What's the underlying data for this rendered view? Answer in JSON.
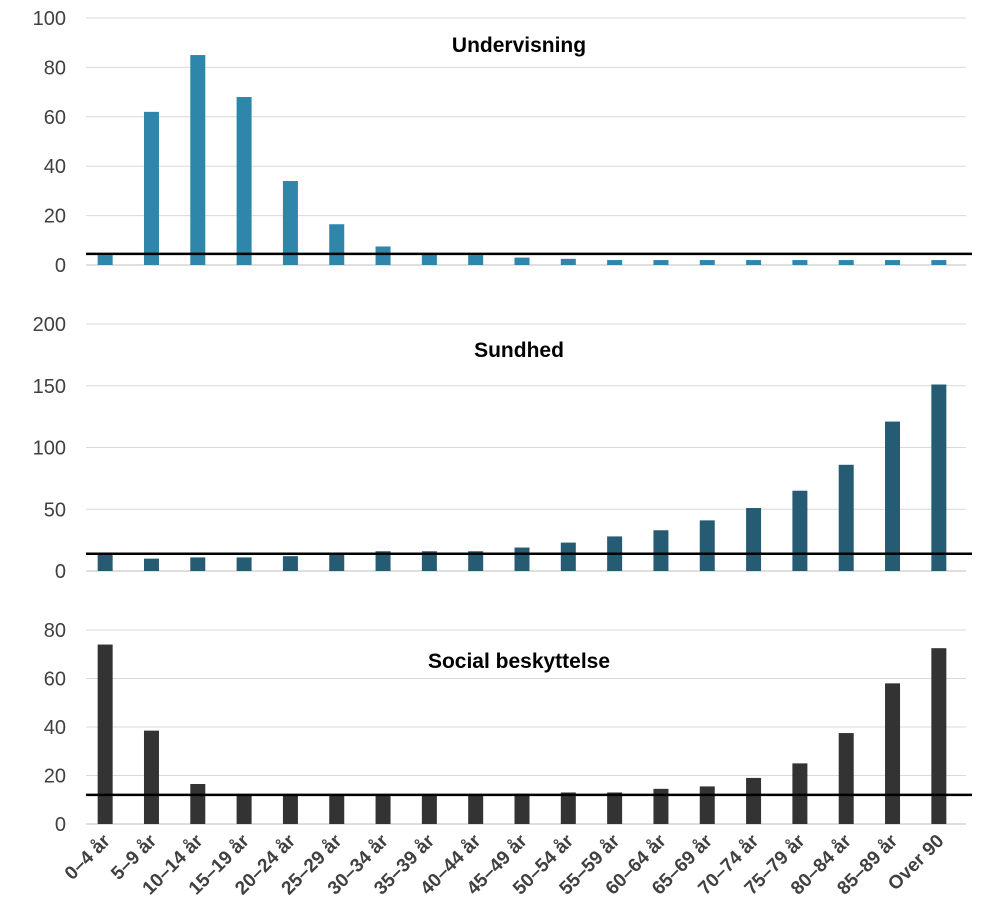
{
  "chart_data": [
    {
      "type": "bar",
      "title": "Undervisning",
      "color": "#2e86ab",
      "ylim": [
        0,
        100
      ],
      "yticks": [
        0,
        20,
        40,
        60,
        80,
        100
      ],
      "reference_line": 4.5,
      "categories": [
        "0–4 år",
        "5–9 år",
        "10–14 år",
        "15–19 år",
        "20–24 år",
        "25–29 år",
        "30–34 år",
        "35–39 år",
        "40–44 år",
        "45–49 år",
        "50–54 år",
        "55–59 år",
        "60–64 år",
        "65–69 år",
        "70–74 år",
        "75–79 år",
        "80–84 år",
        "85–89 år",
        "Over 90"
      ],
      "values": [
        4,
        62,
        85,
        68,
        34,
        16.5,
        7.5,
        4.5,
        4,
        3,
        2.5,
        2,
        2,
        2,
        2,
        2,
        2,
        2,
        2
      ]
    },
    {
      "type": "bar",
      "title": "Sundhed",
      "color": "#265c73",
      "ylim": [
        0,
        200
      ],
      "yticks": [
        0,
        50,
        100,
        150,
        200
      ],
      "reference_line": 14,
      "categories": [
        "0–4 år",
        "5–9 år",
        "10–14 år",
        "15–19 år",
        "20–24 år",
        "25–29 år",
        "30–34 år",
        "35–39 år",
        "40–44 år",
        "45–49 år",
        "50–54 år",
        "55–59 år",
        "60–64 år",
        "65–69 år",
        "70–74 år",
        "75–79 år",
        "80–84 år",
        "85–89 år",
        "Over 90"
      ],
      "values": [
        13,
        10,
        11,
        11,
        12,
        13,
        16,
        16,
        16,
        19,
        23,
        28,
        33,
        41,
        51,
        65,
        86,
        121,
        151
      ]
    },
    {
      "type": "bar",
      "title": "Social beskyttelse",
      "color": "#333333",
      "ylim": [
        0,
        80
      ],
      "yticks": [
        0,
        20,
        40,
        60,
        80
      ],
      "reference_line": 12,
      "categories": [
        "0–4 år",
        "5–9 år",
        "10–14 år",
        "15–19 år",
        "20–24 år",
        "25–29 år",
        "30–34 år",
        "35–39 år",
        "40–44 år",
        "45–49 år",
        "50–54 år",
        "55–59 år",
        "60–64 år",
        "65–69 år",
        "70–74 år",
        "75–79 år",
        "80–84 år",
        "85–89 år",
        "Over 90"
      ],
      "values": [
        74,
        38.5,
        16.5,
        12,
        12,
        12,
        12,
        12,
        12,
        12.5,
        13,
        13,
        14.5,
        15.5,
        19,
        25,
        37.5,
        58,
        72.5
      ]
    }
  ]
}
